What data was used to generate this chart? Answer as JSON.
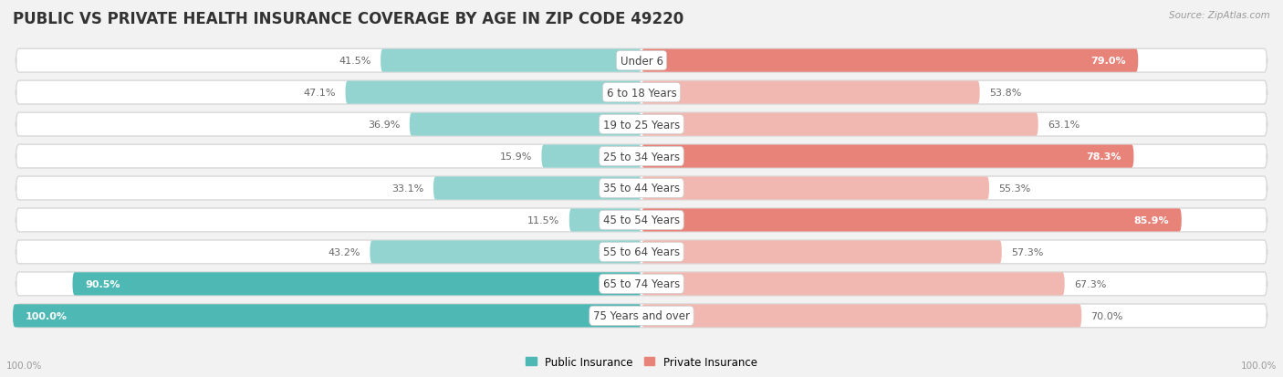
{
  "title": "PUBLIC VS PRIVATE HEALTH INSURANCE COVERAGE BY AGE IN ZIP CODE 49220",
  "source": "Source: ZipAtlas.com",
  "categories": [
    "Under 6",
    "6 to 18 Years",
    "19 to 25 Years",
    "25 to 34 Years",
    "35 to 44 Years",
    "45 to 54 Years",
    "55 to 64 Years",
    "65 to 74 Years",
    "75 Years and over"
  ],
  "public_values": [
    41.5,
    47.1,
    36.9,
    15.9,
    33.1,
    11.5,
    43.2,
    90.5,
    100.0
  ],
  "private_values": [
    79.0,
    53.8,
    63.1,
    78.3,
    55.3,
    85.9,
    57.3,
    67.3,
    70.0
  ],
  "public_color": "#4db8b4",
  "private_color": "#e8837a",
  "public_color_light": "#93d4d1",
  "private_color_light": "#f0b8b0",
  "background_color": "#f2f2f2",
  "row_bg_color": "#ffffff",
  "row_border_color": "#d8d8d8",
  "legend_public": "Public Insurance",
  "legend_private": "Private Insurance",
  "axis_label_left": "100.0%",
  "axis_label_right": "100.0%",
  "title_fontsize": 12,
  "category_fontsize": 8.5,
  "value_fontsize": 8.0,
  "pub_inside_threshold": 80,
  "priv_inside_threshold": 75
}
